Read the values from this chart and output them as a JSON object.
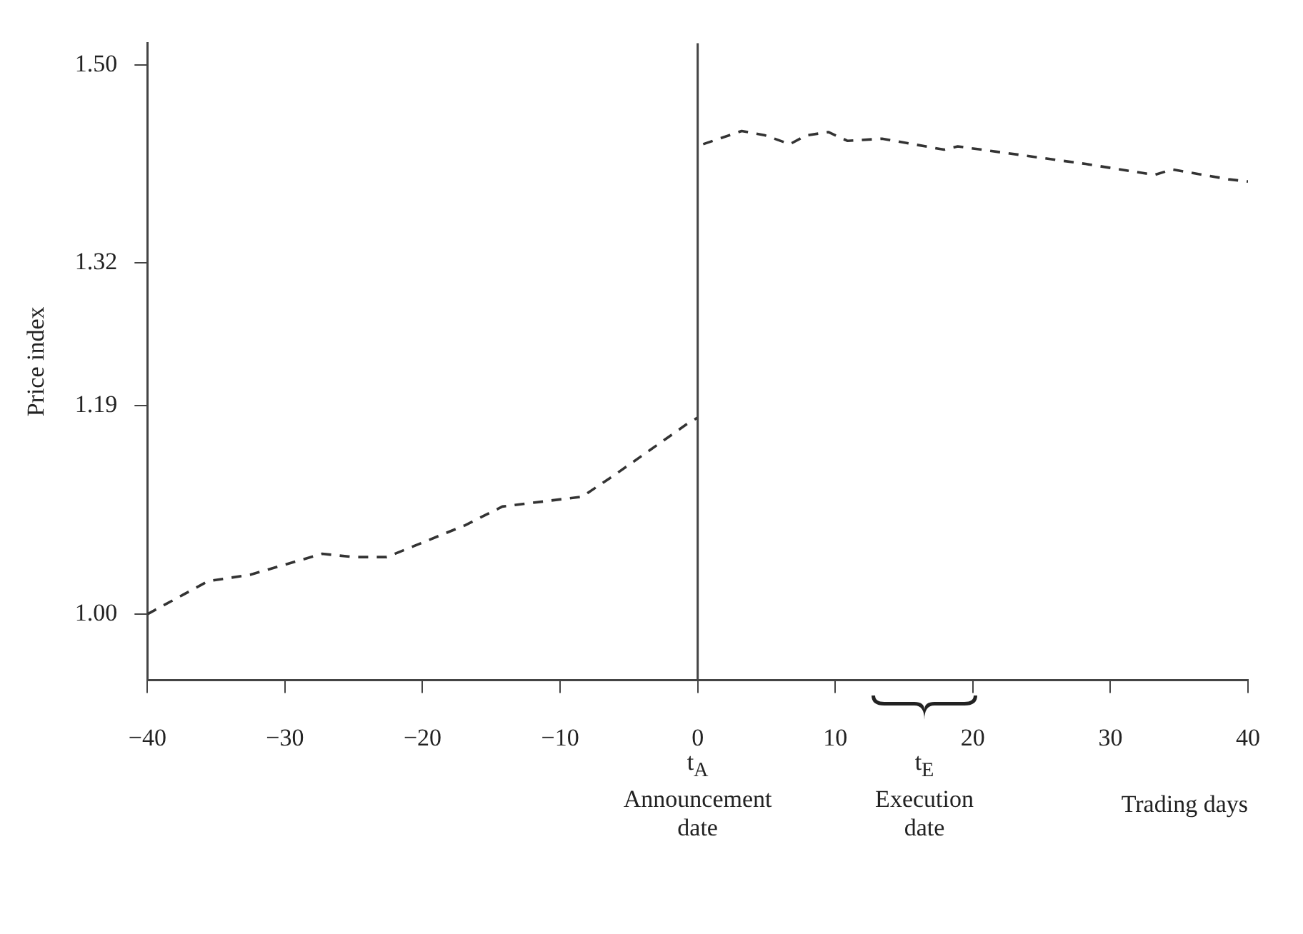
{
  "chart_data": {
    "type": "line",
    "xlabel": "Trading days",
    "ylabel": "Price index",
    "series": [
      {
        "color": "#333333",
        "x": [
          -40,
          -35.6,
          -32.5,
          -27.3,
          -25,
          -22.6,
          -16.9,
          -14.2,
          -8.4,
          -5.9,
          -0.8,
          0
        ],
        "values": [
          1.0,
          1.03,
          1.036,
          1.055,
          1.052,
          1.052,
          1.081,
          1.098,
          1.107,
          1.128,
          1.173,
          1.179
        ]
      },
      {
        "color": "#333333",
        "x": [
          0.4,
          3.2,
          4.9,
          6.7,
          7.9,
          9.5,
          10.9,
          13.4,
          17.9,
          18.9,
          28.2,
          33.2,
          34.5,
          38.6,
          40
        ],
        "values": [
          1.428,
          1.44,
          1.436,
          1.428,
          1.436,
          1.439,
          1.431,
          1.433,
          1.423,
          1.426,
          1.41,
          1.4,
          1.405,
          1.396,
          1.394
        ]
      }
    ],
    "xlim": [
      -40,
      40
    ],
    "xticks": [
      {
        "value": -40,
        "label": "−40"
      },
      {
        "value": -30,
        "label": "−30"
      },
      {
        "value": -20,
        "label": "−20"
      },
      {
        "value": -10,
        "label": "−10"
      },
      0,
      10,
      20,
      30,
      40
    ],
    "ylim": [
      0.94,
      1.52
    ],
    "yticks": [
      {
        "value": 1.0,
        "label": "1.00"
      },
      1.19,
      1.32,
      {
        "value": 1.5,
        "label": "1.50"
      }
    ],
    "ref_lines": [
      {
        "axis": "x",
        "value": 0,
        "label": "t$_{A}$\nAnnouncement\ndate",
        "color": "#444444"
      }
    ],
    "annotations": [
      "t$_{E}$\nExecution\ndate"
    ],
    "grid": false,
    "legend": false,
    "marker": "none",
    "line_style": "dashed"
  }
}
